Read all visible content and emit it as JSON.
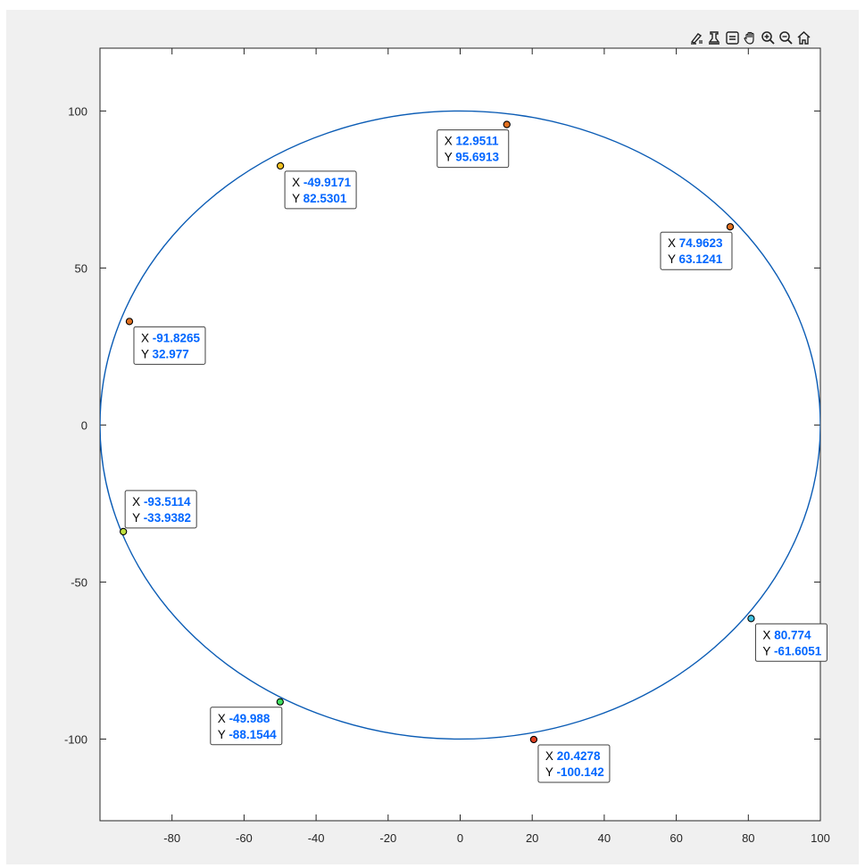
{
  "toolbar": {
    "items": [
      {
        "name": "brush-icon"
      },
      {
        "name": "data-tip-icon"
      },
      {
        "name": "restore-view-icon"
      },
      {
        "name": "pan-icon"
      },
      {
        "name": "zoom-in-icon"
      },
      {
        "name": "zoom-out-icon"
      },
      {
        "name": "home-icon"
      }
    ]
  },
  "colors": {
    "curve": "#0b5cb5",
    "figure_bg": "#f0f0f0",
    "axes_bg": "#ffffff",
    "datatip_value": "#0066ff"
  },
  "chart_data": {
    "type": "line",
    "title": "",
    "xlabel": "",
    "ylabel": "",
    "xlim": [
      -100,
      100
    ],
    "ylim": [
      -126,
      120
    ],
    "grid": false,
    "x_ticks": [
      -80,
      -60,
      -40,
      -20,
      0,
      20,
      40,
      60,
      80,
      100
    ],
    "y_ticks": [
      -100,
      -50,
      0,
      50,
      100
    ],
    "series": [
      {
        "shape": "circle",
        "center": [
          0,
          0
        ],
        "radius": 100,
        "color": "#0b5cb5"
      }
    ],
    "datatips": [
      {
        "x": "12.9511",
        "y": "95.6913",
        "marker_color": "#e07020",
        "label_side": "below-left"
      },
      {
        "x": "-49.9171",
        "y": "82.5301",
        "marker_color": "#f0c020",
        "label_side": "below-right"
      },
      {
        "x": "74.9623",
        "y": "63.1241",
        "marker_color": "#e07020",
        "label_side": "below-left"
      },
      {
        "x": "-91.8265",
        "y": "32.977",
        "marker_color": "#e07020",
        "label_side": "below-right"
      },
      {
        "x": "-93.5114",
        "y": "-33.9382",
        "marker_color": "#c0e040",
        "label_side": "above-right"
      },
      {
        "x": "80.774",
        "y": "-61.6051",
        "marker_color": "#40c0e0",
        "label_side": "below-right"
      },
      {
        "x": "-49.988",
        "y": "-88.1544",
        "marker_color": "#40e060",
        "label_side": "below-left"
      },
      {
        "x": "20.4278",
        "y": "-100.142",
        "marker_color": "#e04020",
        "label_side": "below-right"
      }
    ]
  }
}
